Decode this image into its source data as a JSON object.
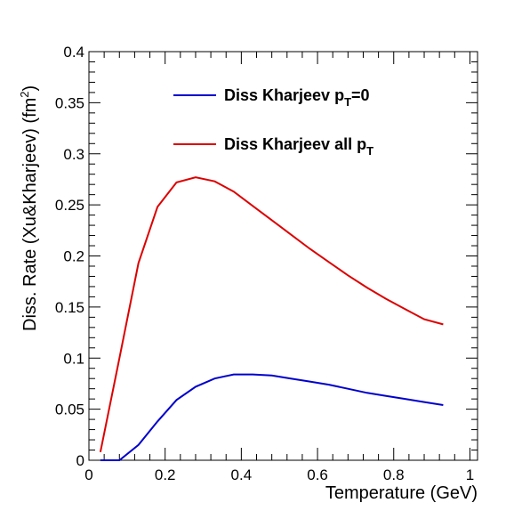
{
  "chart_data": {
    "type": "line",
    "xlabel": "Temperature (GeV)",
    "ylabel": "Diss. Rate (Xu&Kharjeev) (fm²)",
    "ylabel_parts": {
      "main": "Diss. Rate (Xu&Kharjeev) (fm",
      "sup": "2",
      "tail": ")"
    },
    "xlim": [
      0,
      1.02
    ],
    "ylim": [
      0,
      0.4
    ],
    "x_ticks": [
      "0",
      "0.2",
      "0.4",
      "0.6",
      "0.8",
      "1"
    ],
    "x_tick_values": [
      0,
      0.2,
      0.4,
      0.6,
      0.8,
      1.0
    ],
    "y_ticks": [
      "0",
      "0.05",
      "0.1",
      "0.15",
      "0.2",
      "0.25",
      "0.3",
      "0.35",
      "0.4"
    ],
    "y_tick_values": [
      0,
      0.05,
      0.1,
      0.15,
      0.2,
      0.25,
      0.3,
      0.35,
      0.4
    ],
    "legend_position": "top-center",
    "series": [
      {
        "name": "Diss Kharjeev p_T=0",
        "label_main": "Diss Kharjeev p",
        "label_sub": "T",
        "label_tail": "=0",
        "color": "#0000cc",
        "x": [
          0.03,
          0.08,
          0.13,
          0.18,
          0.23,
          0.28,
          0.33,
          0.38,
          0.43,
          0.48,
          0.53,
          0.58,
          0.63,
          0.68,
          0.73,
          0.78,
          0.83,
          0.88,
          0.93
        ],
        "y": [
          0.0,
          0.0,
          0.015,
          0.038,
          0.059,
          0.072,
          0.08,
          0.084,
          0.084,
          0.083,
          0.08,
          0.077,
          0.074,
          0.07,
          0.066,
          0.063,
          0.06,
          0.057,
          0.054
        ]
      },
      {
        "name": "Diss Kharjeev all p_T",
        "label_main": "Diss Kharjeev all p",
        "label_sub": "T",
        "label_tail": "",
        "color": "#dd0000",
        "x": [
          0.03,
          0.08,
          0.13,
          0.18,
          0.23,
          0.28,
          0.33,
          0.38,
          0.43,
          0.48,
          0.53,
          0.58,
          0.63,
          0.68,
          0.73,
          0.78,
          0.83,
          0.88,
          0.93
        ],
        "y": [
          0.008,
          0.1,
          0.193,
          0.248,
          0.272,
          0.277,
          0.273,
          0.263,
          0.249,
          0.235,
          0.221,
          0.207,
          0.194,
          0.181,
          0.169,
          0.158,
          0.148,
          0.138,
          0.133
        ]
      }
    ]
  }
}
